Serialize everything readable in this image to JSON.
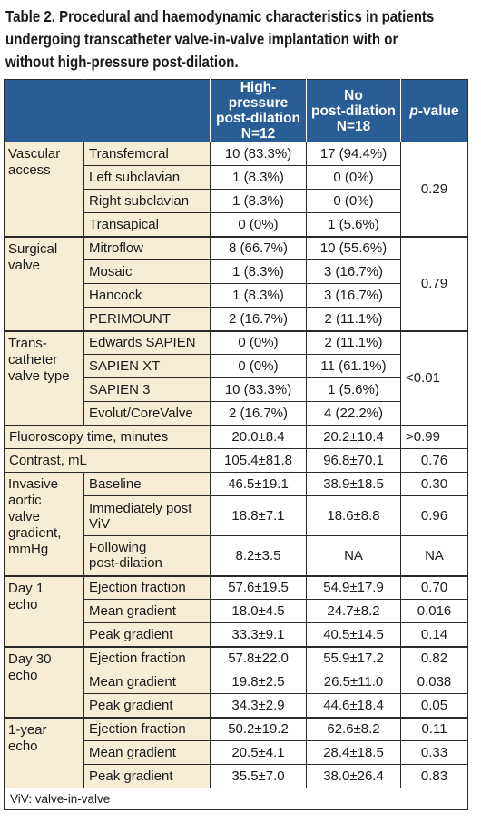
{
  "caption": {
    "line1": "Table 2. Procedural and haemodynamic characteristics in patients",
    "line2": "undergoing transcatheter valve-in-valve implantation with or",
    "line3": "without high-pressure post-dilation."
  },
  "header": {
    "col1_l1": "High-pressure",
    "col1_l2": "post-dilation",
    "col1_l3": "N=12",
    "col2_l1": "No",
    "col2_l2": "post-dilation",
    "col2_l3": "N=18",
    "pvalue_italic": "p",
    "pvalue_rest": "-value"
  },
  "rows": {
    "vascular": {
      "label": "Vascular access",
      "p": "0.29",
      "items": [
        {
          "name": "Transfemoral",
          "a": "10 (83.3%)",
          "b": "17 (94.4%)"
        },
        {
          "name": "Left subclavian",
          "a": "1 (8.3%)",
          "b": "0 (0%)"
        },
        {
          "name": "Right subclavian",
          "a": "1 (8.3%)",
          "b": "0 (0%)"
        },
        {
          "name": "Transapical",
          "a": "0 (0%)",
          "b": "1 (5.6%)"
        }
      ]
    },
    "surgical": {
      "label": "Surgical valve",
      "p": "0.79",
      "items": [
        {
          "name": "Mitroflow",
          "a": "8 (66.7%)",
          "b": "10 (55.6%)"
        },
        {
          "name": "Mosaic",
          "a": "1 (8.3%)",
          "b": "3 (16.7%)"
        },
        {
          "name": "Hancock",
          "a": "1 (8.3%)",
          "b": "3 (16.7%)"
        },
        {
          "name": "PERIMOUNT",
          "a": "2 (16.7%)",
          "b": "2 (11.1%)"
        }
      ]
    },
    "tcvalve": {
      "label_l1": "Trans-",
      "label_l2": "catheter",
      "label_l3": "valve type",
      "p": "<0.01",
      "items": [
        {
          "name": "Edwards SAPIEN",
          "a": "0 (0%)",
          "b": "2 (11.1%)"
        },
        {
          "name": "SAPIEN XT",
          "a": "0 (0%)",
          "b": "11 (61.1%)"
        },
        {
          "name": "SAPIEN 3",
          "a": "10 (83.3%)",
          "b": "1 (5.6%)"
        },
        {
          "name": "Evolut/CoreValve",
          "a": "2 (16.7%)",
          "b": "4 (22.2%)"
        }
      ]
    },
    "fluoro": {
      "name": "Fluoroscopy time, minutes",
      "a": "20.0±8.4",
      "b": "20.2±10.4",
      "p": ">0.99"
    },
    "contrast": {
      "name": "Contrast, mL",
      "a": "105.4±81.8",
      "b": "96.8±70.1",
      "p": "0.76"
    },
    "invasive": {
      "label_l1": "Invasive",
      "label_l2": "aortic",
      "label_l3": "valve",
      "label_l4": "gradient,",
      "label_l5": "mmHg",
      "items": [
        {
          "name": "Baseline",
          "a": "46.5±19.1",
          "b": "38.9±18.5",
          "p": "0.30"
        },
        {
          "name_l1": "Immediately post",
          "name_l2": "ViV",
          "a": "18.8±7.1",
          "b": "18.6±8.8",
          "p": "0.96"
        },
        {
          "name_l1": "Following",
          "name_l2": "post-dilation",
          "a": "8.2±3.5",
          "b": "NA",
          "p": "NA"
        }
      ]
    },
    "day1": {
      "label_l1": "Day 1",
      "label_l2": "echo",
      "items": [
        {
          "name": "Ejection fraction",
          "a": "57.6±19.5",
          "b": "54.9±17.9",
          "p": "0.70"
        },
        {
          "name": "Mean gradient",
          "a": "18.0±4.5",
          "b": "24.7±8.2",
          "p": "0.016"
        },
        {
          "name": "Peak gradient",
          "a": "33.3±9.1",
          "b": "40.5±14.5",
          "p": "0.14"
        }
      ]
    },
    "day30": {
      "label_l1": "Day 30",
      "label_l2": "echo",
      "items": [
        {
          "name": "Ejection fraction",
          "a": "57.8±22.0",
          "b": "55.9±17.2",
          "p": "0.82"
        },
        {
          "name": "Mean gradient",
          "a": "19.8±2.5",
          "b": "26.5±11.0",
          "p": "0.038"
        },
        {
          "name": "Peak gradient",
          "a": "34.3±2.9",
          "b": "44.6±18.4",
          "p": "0.05"
        }
      ]
    },
    "year1": {
      "label_l1": "1-year",
      "label_l2": "echo",
      "items": [
        {
          "name": "Ejection fraction",
          "a": "50.2±19.2",
          "b": "62.6±8.2",
          "p": "0.11"
        },
        {
          "name": "Mean gradient",
          "a": "20.5±4.1",
          "b": "28.4±18.5",
          "p": "0.33"
        },
        {
          "name": "Peak gradient",
          "a": "35.5±7.0",
          "b": "38.0±26.4",
          "p": "0.83"
        }
      ]
    }
  },
  "footnote": "ViV: valve-in-valve"
}
